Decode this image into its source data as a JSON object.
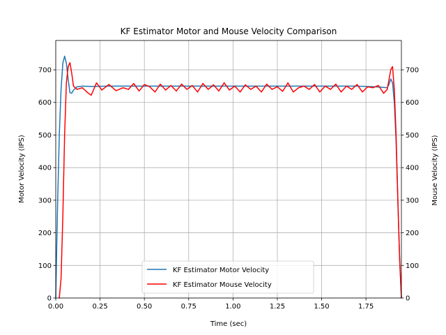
{
  "chart_data": {
    "type": "line",
    "title": "KF Estimator Motor and Mouse Velocity Comparison",
    "xlabel": "Time (sec)",
    "ylabel": "Motor Velocity (IPS)",
    "ylabel_right": "Mouse Velocity (IPS)",
    "xlim": [
      0,
      1.95
    ],
    "ylim": [
      0,
      790
    ],
    "xticks": [
      0.0,
      0.25,
      0.5,
      0.75,
      1.0,
      1.25,
      1.5,
      1.75
    ],
    "xtick_labels": [
      "0.00",
      "0.25",
      "0.50",
      "0.75",
      "1.00",
      "1.25",
      "1.50",
      "1.75"
    ],
    "yticks": [
      0,
      100,
      200,
      300,
      400,
      500,
      600,
      700
    ],
    "ytick_labels": [
      "0",
      "100",
      "200",
      "300",
      "400",
      "500",
      "600",
      "700"
    ],
    "grid": true,
    "legend_position": "lower-center",
    "series": [
      {
        "name": "KF Estimator Motor Velocity",
        "color": "#1f77b4",
        "x": [
          0.0,
          0.01,
          0.02,
          0.03,
          0.04,
          0.05,
          0.06,
          0.07,
          0.08,
          0.09,
          0.1,
          0.12,
          0.15,
          0.2,
          0.3,
          0.5,
          0.75,
          1.0,
          1.25,
          1.5,
          1.7,
          1.8,
          1.85,
          1.87,
          1.88,
          1.89,
          1.9,
          1.91,
          1.92,
          1.93,
          1.94,
          1.95
        ],
        "y": [
          0,
          280,
          500,
          640,
          720,
          742,
          720,
          670,
          630,
          628,
          638,
          648,
          650,
          649,
          650,
          650,
          650,
          650,
          650,
          650,
          650,
          648,
          646,
          645,
          655,
          672,
          660,
          600,
          480,
          300,
          120,
          0
        ]
      },
      {
        "name": "KF Estimator Mouse Velocity",
        "color": "#ff0000",
        "x": [
          0.02,
          0.03,
          0.04,
          0.05,
          0.06,
          0.07,
          0.08,
          0.09,
          0.1,
          0.12,
          0.15,
          0.18,
          0.2,
          0.23,
          0.26,
          0.3,
          0.34,
          0.38,
          0.41,
          0.44,
          0.47,
          0.5,
          0.53,
          0.56,
          0.59,
          0.62,
          0.65,
          0.68,
          0.71,
          0.74,
          0.77,
          0.8,
          0.83,
          0.86,
          0.89,
          0.92,
          0.95,
          0.98,
          1.01,
          1.04,
          1.07,
          1.1,
          1.13,
          1.16,
          1.19,
          1.22,
          1.25,
          1.28,
          1.31,
          1.34,
          1.37,
          1.4,
          1.43,
          1.46,
          1.49,
          1.52,
          1.55,
          1.58,
          1.61,
          1.64,
          1.67,
          1.7,
          1.73,
          1.76,
          1.79,
          1.82,
          1.85,
          1.87,
          1.89,
          1.9,
          1.91,
          1.92,
          1.93,
          1.94,
          1.95
        ],
        "y": [
          0,
          60,
          250,
          500,
          660,
          710,
          722,
          690,
          650,
          640,
          645,
          630,
          622,
          660,
          638,
          655,
          636,
          645,
          640,
          658,
          635,
          655,
          648,
          632,
          656,
          638,
          652,
          635,
          656,
          640,
          652,
          632,
          658,
          640,
          654,
          635,
          660,
          638,
          650,
          632,
          654,
          640,
          650,
          632,
          656,
          640,
          648,
          634,
          660,
          632,
          645,
          650,
          640,
          655,
          632,
          650,
          640,
          656,
          632,
          650,
          640,
          655,
          632,
          648,
          645,
          652,
          628,
          640,
          700,
          710,
          640,
          500,
          300,
          120,
          0
        ]
      }
    ]
  }
}
